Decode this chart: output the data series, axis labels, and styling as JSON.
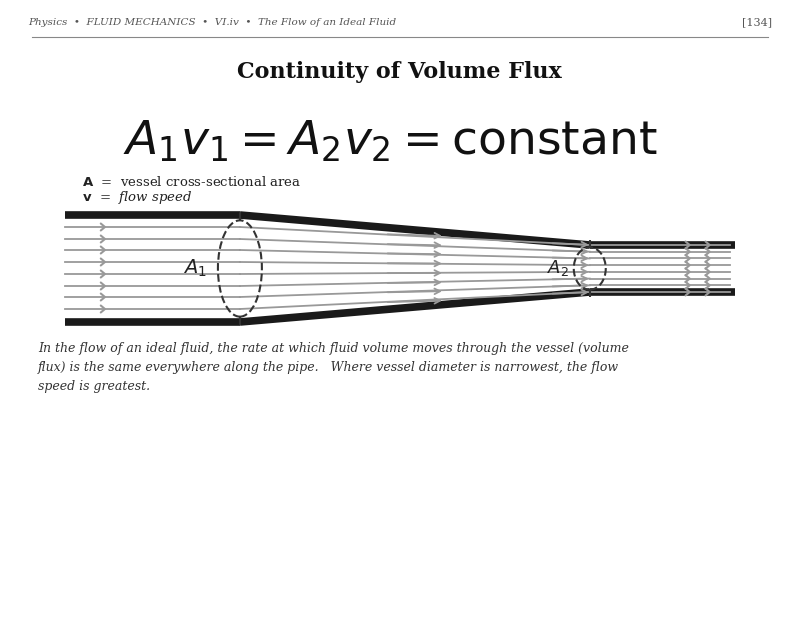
{
  "title": "Continuity of Volume Flux",
  "header": "Physics  •  FLUID MECHANICS  •  VI.iv  •  The Flow of an Ideal Fluid",
  "page_num": "[134]",
  "equation": "A₁v₁ = A₂v₂ = constant",
  "legend_A": "A  =  vessel cross-sectional area",
  "legend_v": "v  =  flow speed",
  "caption": "In the flow of an ideal fluid, the rate at which fluid volume moves through the vessel (volume\nflux) is the same everywhere along the pipe.   Where vessel diameter is narrowest, the flow\nspeed is greatest.",
  "bg_color": "#ffffff",
  "pipe_color": "#1a1a1a",
  "arrow_color": "#999999",
  "dashed_color": "#333333",
  "label_color": "#222222"
}
